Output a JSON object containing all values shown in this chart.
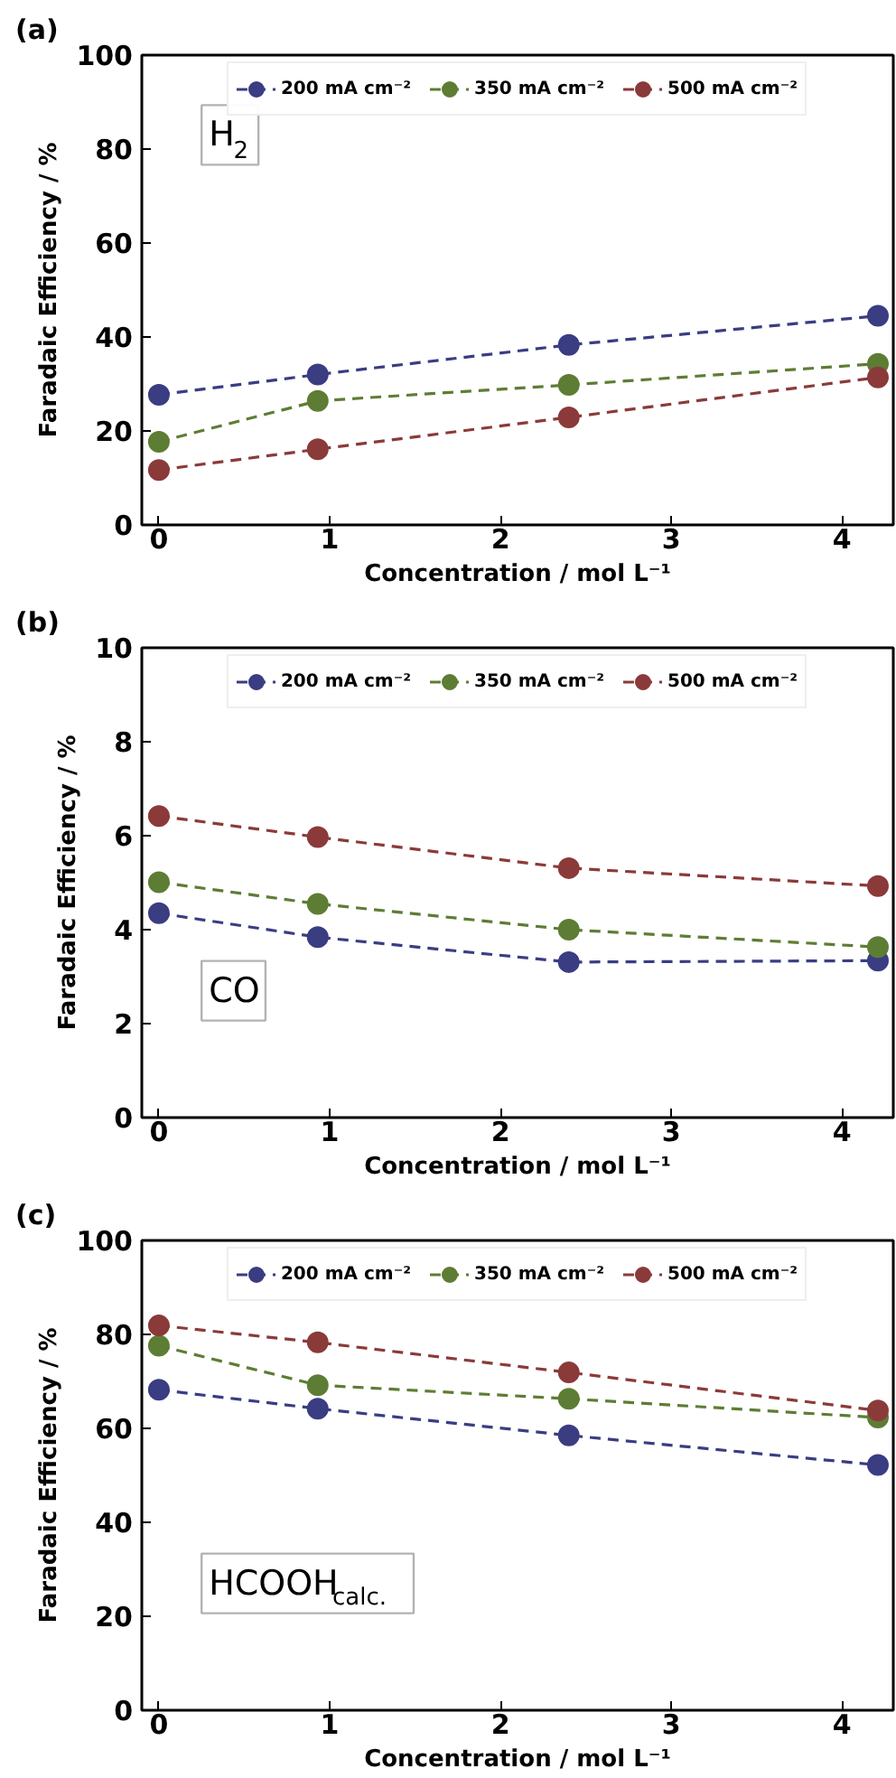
{
  "chart_data": [
    {
      "type": "line",
      "title": "(a)",
      "xlabel": "Concentration / mol L⁻¹",
      "ylabel": "Faradaic Efficiency / %",
      "annotations": [
        "H$_{2}$"
      ],
      "x": [
        0,
        0.93,
        2.4,
        4.21
      ],
      "xlim": [
        -0.1,
        4.3
      ],
      "xticks": [
        0,
        1,
        2,
        3,
        4
      ],
      "ylim": [
        0,
        100
      ],
      "yticks": [
        0,
        20,
        40,
        60,
        80,
        100
      ],
      "marker": "circle",
      "line_style": "dashed",
      "legend": "top",
      "grid": false,
      "series": [
        {
          "name": "200 mA cm⁻²",
          "color": "#3a3d82",
          "values": [
            27.7,
            32.0,
            38.3,
            44.5
          ]
        },
        {
          "name": "350 mA cm⁻²",
          "color": "#5e7d34",
          "values": [
            17.7,
            26.4,
            29.8,
            34.3
          ]
        },
        {
          "name": "500 mA cm⁻²",
          "color": "#8b3a3a",
          "values": [
            11.7,
            16.1,
            22.9,
            31.4
          ]
        }
      ]
    },
    {
      "type": "line",
      "title": "(b)",
      "xlabel": "Concentration / mol L⁻¹",
      "ylabel": "Faradaic Efficiency / %",
      "annotations": [
        "CO"
      ],
      "x": [
        0,
        0.93,
        2.4,
        4.21
      ],
      "xlim": [
        -0.1,
        4.3
      ],
      "xticks": [
        0,
        1,
        2,
        3,
        4
      ],
      "ylim": [
        0,
        10
      ],
      "yticks": [
        0,
        2,
        4,
        6,
        8,
        10
      ],
      "marker": "circle",
      "line_style": "dashed",
      "legend": "top",
      "grid": false,
      "series": [
        {
          "name": "200 mA cm⁻²",
          "color": "#3a3d82",
          "values": [
            4.35,
            3.84,
            3.31,
            3.34
          ]
        },
        {
          "name": "350 mA cm⁻²",
          "color": "#5e7d34",
          "values": [
            5.01,
            4.55,
            4.0,
            3.63
          ]
        },
        {
          "name": "500 mA cm⁻²",
          "color": "#8b3a3a",
          "values": [
            6.42,
            5.97,
            5.31,
            4.93
          ]
        }
      ]
    },
    {
      "type": "line",
      "title": "(c)",
      "xlabel": "Concentration / mol L⁻¹",
      "ylabel": "Faradaic Efficiency / %",
      "annotations": [
        "HCOOH$_{calc.}$"
      ],
      "x": [
        0,
        0.93,
        2.4,
        4.21
      ],
      "xlim": [
        -0.1,
        4.3
      ],
      "xticks": [
        0,
        1,
        2,
        3,
        4
      ],
      "ylim": [
        0,
        100
      ],
      "yticks": [
        0,
        20,
        40,
        60,
        80,
        100
      ],
      "marker": "circle",
      "line_style": "dashed",
      "legend": "top",
      "grid": false,
      "series": [
        {
          "name": "200 mA cm⁻²",
          "color": "#3a3d82",
          "values": [
            68.2,
            64.2,
            58.5,
            52.2
          ]
        },
        {
          "name": "350 mA cm⁻²",
          "color": "#5e7d34",
          "values": [
            77.6,
            69.2,
            66.3,
            62.3
          ]
        },
        {
          "name": "500 mA cm⁻²",
          "color": "#8b3a3a",
          "values": [
            81.9,
            78.3,
            71.9,
            63.8
          ]
        }
      ]
    }
  ]
}
